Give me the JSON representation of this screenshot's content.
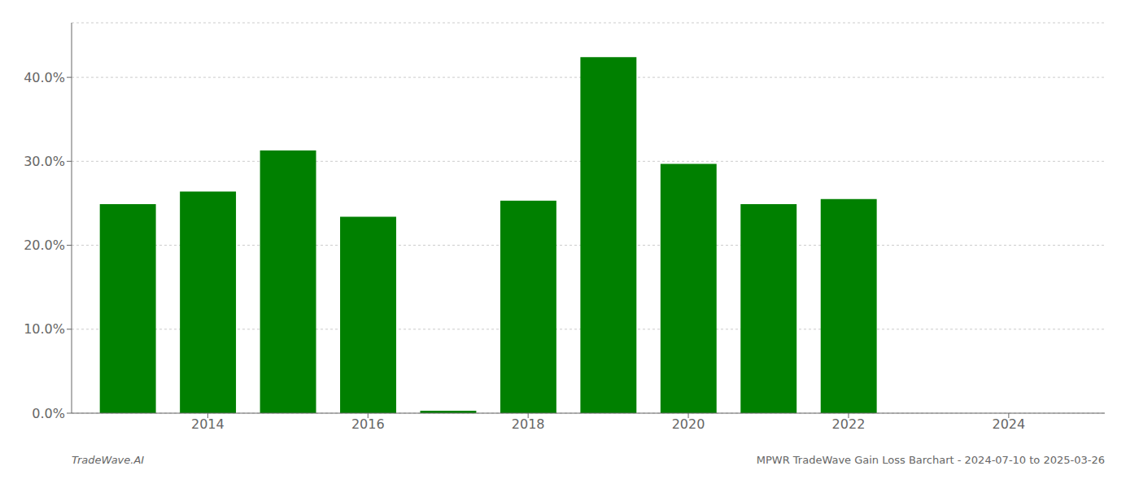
{
  "chart_data": {
    "type": "bar",
    "x": [
      2013,
      2014,
      2015,
      2016,
      2017,
      2018,
      2019,
      2020,
      2021,
      2022,
      2023
    ],
    "values": [
      0.249,
      0.264,
      0.313,
      0.234,
      0.003,
      0.253,
      0.424,
      0.297,
      0.249,
      0.255,
      0.0
    ],
    "color": "#008000",
    "xlim": [
      2012.3,
      2025.2
    ],
    "xticks": [
      2014,
      2016,
      2018,
      2020,
      2022,
      2024
    ],
    "ylim": [
      0,
      0.465
    ],
    "yticks": [
      {
        "value": 0.0,
        "label": "0.0%"
      },
      {
        "value": 0.1,
        "label": "10.0%"
      },
      {
        "value": 0.2,
        "label": "20.0%"
      },
      {
        "value": 0.3,
        "label": "30.0%"
      },
      {
        "value": 0.4,
        "label": "40.0%"
      }
    ],
    "grid": true,
    "annotations": [
      "TradeWave.AI",
      "MPWR TradeWave Gain Loss Barchart - 2024-07-10 to 2025-03-26"
    ]
  }
}
